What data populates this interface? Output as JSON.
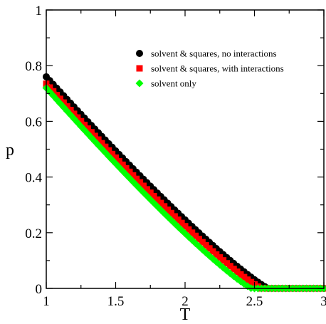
{
  "chart_data": {
    "type": "scatter",
    "xlabel": "T",
    "ylabel": "p",
    "xlim": [
      1,
      3
    ],
    "ylim": [
      0,
      1
    ],
    "x_ticks": [
      "1",
      "1.5",
      "2",
      "2.5",
      "3"
    ],
    "y_ticks": [
      "0",
      "0.2",
      "0.4",
      "0.6",
      "0.8",
      "1"
    ],
    "grid": false,
    "legend_position": "top-right",
    "series": [
      {
        "name": "solvent & squares, no interactions",
        "marker": "circle",
        "color": "#000000",
        "p0": 0.76,
        "Tc": 2.6
      },
      {
        "name": "solvent & squares, with interactions",
        "marker": "square",
        "color": "#ff0000",
        "p0": 0.735,
        "Tc": 2.55
      },
      {
        "name": "solvent only",
        "marker": "diamond",
        "color": "#00ff00",
        "p0": 0.72,
        "Tc": 2.48
      }
    ]
  }
}
